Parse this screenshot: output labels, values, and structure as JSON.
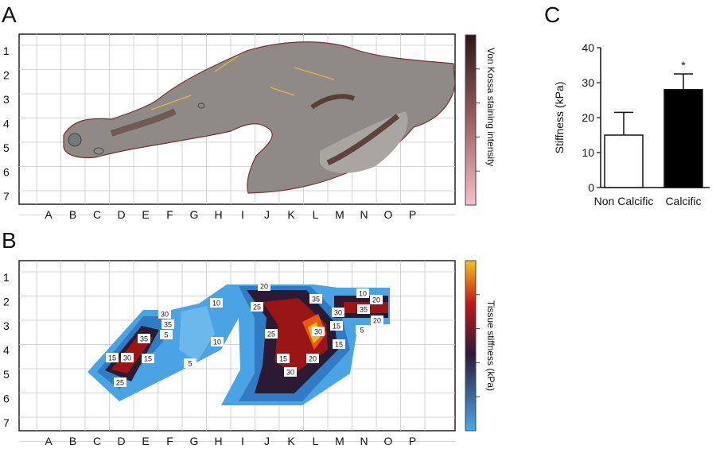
{
  "panels": {
    "a": {
      "label": "A",
      "colorbar_label": "Von Kossa staining intensity"
    },
    "b": {
      "label": "B",
      "colorbar_label": "Tissue stiffness (kPa)"
    },
    "c": {
      "label": "C"
    }
  },
  "grid": {
    "columns": [
      "A",
      "B",
      "C",
      "D",
      "E",
      "F",
      "G",
      "H",
      "I",
      "J",
      "K",
      "L",
      "M",
      "N",
      "O",
      "P"
    ],
    "rows": [
      "1",
      "2",
      "3",
      "4",
      "5",
      "6",
      "7"
    ]
  },
  "contour_labels": [
    "20",
    "25",
    "30",
    "35",
    "5",
    "15",
    "35",
    "30",
    "10",
    "15",
    "5",
    "10",
    "35",
    "25",
    "30",
    "20",
    "15",
    "10",
    "30",
    "20",
    "15",
    "35",
    "25",
    "30",
    "15",
    "20",
    "5"
  ],
  "colors": {
    "vk_dark": "#3a1e1e",
    "vk_light": "#f3b7c1",
    "stiff_low": "#3f98dc",
    "stiff_mid": "#3b1e3c",
    "stiff_high": "#f2b81e",
    "bar_calcific": "#000000",
    "bar_noncalcific": "#ffffff"
  },
  "chart_data": {
    "type": "bar",
    "title": "",
    "xlabel": "",
    "ylabel": "Stiffness (kPa)",
    "categories": [
      "Non Calcific",
      "Calcific"
    ],
    "values": [
      15,
      28
    ],
    "errors": [
      6.5,
      4.5
    ],
    "ylim": [
      0,
      40
    ],
    "yticks": [
      "0",
      "10",
      "20",
      "30",
      "40"
    ],
    "significance": [
      "",
      "*"
    ]
  }
}
